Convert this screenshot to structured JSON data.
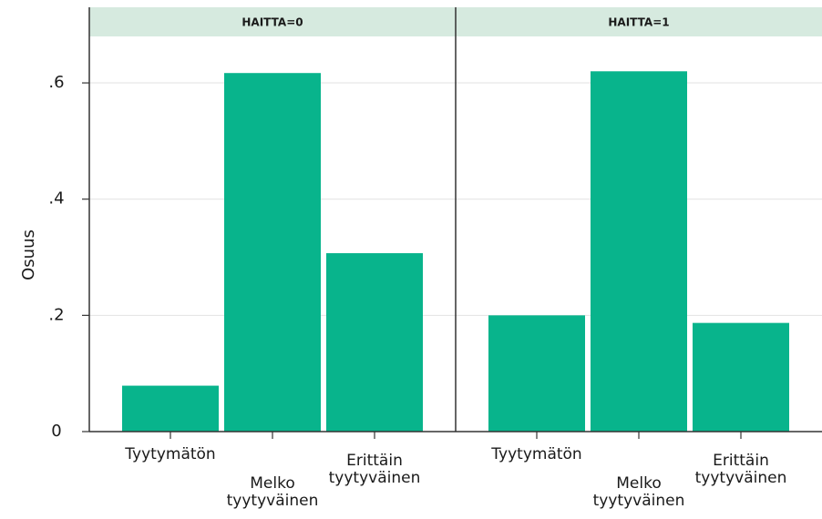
{
  "chart_data": [
    {
      "type": "bar",
      "title": "HAITTA=0",
      "ylabel": "Osuus",
      "categories": [
        "Tyytymätön",
        "Melko tyytyväinen",
        "Erittäin tyytyväinen"
      ],
      "values": [
        0.079,
        0.617,
        0.307
      ],
      "color": "#08b48c",
      "ylim": [
        0,
        0.68
      ],
      "yticks": [
        0,
        {
          "value": 0.2,
          "label": ".2"
        },
        {
          "value": 0.4,
          "label": ".4"
        },
        {
          "value": 0.6,
          "label": ".6"
        }
      ],
      "grid": true
    },
    {
      "type": "bar",
      "title": "HAITTA=1",
      "categories": [
        "Tyytymätön",
        "Melko tyytyväinen",
        "Erittäin tyytyväinen"
      ],
      "values": [
        0.2,
        0.62,
        0.187
      ],
      "color": "#08b48c",
      "ylim": [
        0,
        0.68
      ],
      "yticks": [
        0,
        {
          "value": 0.2,
          "label": ".2"
        },
        {
          "value": 0.4,
          "label": ".4"
        },
        {
          "value": 0.6,
          "label": ".6"
        }
      ],
      "grid": true
    }
  ]
}
